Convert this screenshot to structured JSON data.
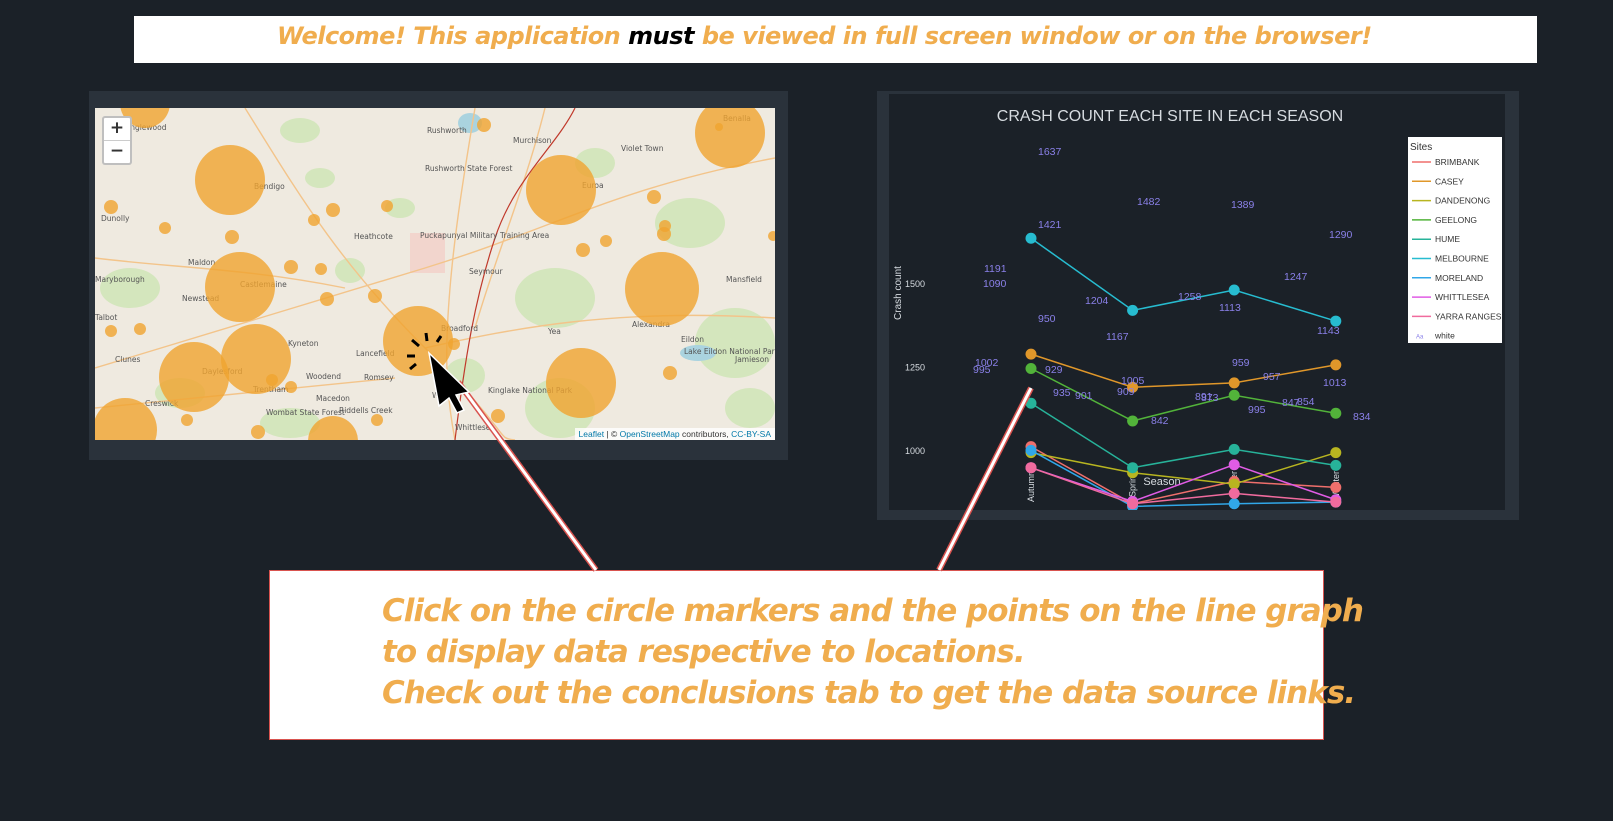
{
  "banner": {
    "part1": "Welcome!  This application ",
    "emphasis": "must",
    "part2": " be viewed in full screen window or on the browser!"
  },
  "map": {
    "zoom_in": "+",
    "zoom_out": "−",
    "attribution": {
      "leaflet": "Leaflet",
      "sep": " | © ",
      "osm": "OpenStreetMap",
      "contrib": " contributors, ",
      "license": "CC-BY-SA"
    },
    "places": [
      "Inglewood",
      "Rushworth",
      "Murchison",
      "Violet Town",
      "Benalla",
      "Rushworth State Forest",
      "Euroa",
      "Dunolly",
      "Bendigo",
      "Heathcote",
      "Puckapunyal Military Training Area",
      "Maldon",
      "Seymour",
      "Mansfield",
      "Maryborough",
      "Newstead",
      "Castlemaine",
      "Talbot",
      "Kyneton",
      "Broadford",
      "Yea",
      "Alexandra",
      "Eildon",
      "Clunes",
      "Lancefield",
      "Lake Eildon National Park",
      "Jamieson",
      "Daylesford",
      "Trentham",
      "Woodend",
      "Romsey",
      "Creswick",
      "Macedon",
      "Wallan",
      "Kinglake National Park",
      "Wombat State Forest",
      "Riddells Creek",
      "Whittlesea"
    ],
    "marker_color": "#f0a430"
  },
  "chart_data": {
    "type": "line",
    "title": "CRASH COUNT EACH SITE IN EACH SEASON",
    "xlabel": "Season",
    "ylabel": "Crash count",
    "categories": [
      "Autumn",
      "Spring",
      "Summer",
      "Winter"
    ],
    "ylim": [
      790,
      1720
    ],
    "yticks": [
      1000,
      1250,
      1500
    ],
    "legend_title": "Sites",
    "legend_position": "top-right",
    "series": [
      {
        "name": "BRIMBANK",
        "color": "#ef6f6c",
        "values": [
          1013,
          842,
          909,
          891
        ]
      },
      {
        "name": "CASEY",
        "color": "#e0972a",
        "values": [
          1290,
          1191,
          1204,
          1258
        ]
      },
      {
        "name": "DANDENONG",
        "color": "#b8b520",
        "values": [
          995,
          935,
          901,
          995
        ]
      },
      {
        "name": "GEELONG",
        "color": "#52b33a",
        "values": [
          1247,
          1090,
          1167,
          1113
        ]
      },
      {
        "name": "HUME",
        "color": "#27b39a",
        "values": [
          1143,
          950,
          1005,
          957
        ]
      },
      {
        "name": "MELBOURNE",
        "color": "#27bcd0",
        "values": [
          1637,
          1421,
          1482,
          1389
        ]
      },
      {
        "name": "MORELAND",
        "color": "#31a7e8",
        "values": [
          1002,
          834,
          842,
          847
        ]
      },
      {
        "name": "WHITTLESEA",
        "color": "#e05ce5",
        "values": [
          950,
          849,
          959,
          854
        ]
      },
      {
        "name": "YARRA RANGES",
        "color": "#f06b9e",
        "values": [
          950,
          842,
          873,
          847
        ]
      }
    ],
    "labels_text": [
      "1637",
      "1421",
      "1482",
      "1389",
      "1290",
      "1191",
      "1204",
      "1258",
      "1247",
      "1090",
      "1167",
      "1113",
      "1143",
      "950",
      "1005",
      "959",
      "957",
      "1013",
      "1002",
      "995",
      "929",
      "935",
      "901",
      "909",
      "873",
      "891",
      "995",
      "847",
      "854",
      "834",
      "842"
    ],
    "legend_extra": "white",
    "legend_extra_icon": "Aa"
  },
  "callout": {
    "line1": "Click on the circle markers and the points on the line graph",
    "line2": " to display data respective to locations.",
    "line3": "Check out the conclusions tab to get the data source links."
  }
}
